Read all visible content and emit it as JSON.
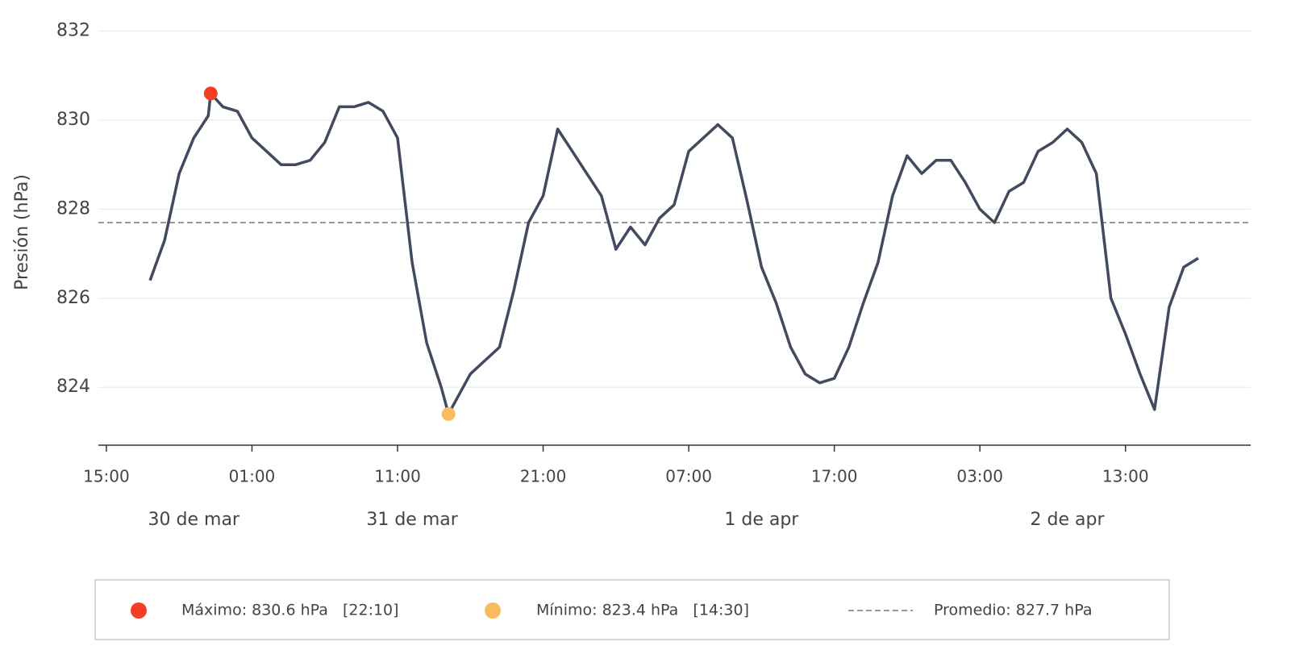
{
  "chart_data": {
    "type": "line",
    "ylabel": "Presión (hPa)",
    "color": "#414a5e",
    "x": [
      "03-30 18:00",
      "03-30 19:00",
      "03-30 20:00",
      "03-30 21:00",
      "03-30 22:00",
      "03-30 22:10",
      "03-30 23:00",
      "03-31 00:00",
      "03-31 01:00",
      "03-31 02:00",
      "03-31 03:00",
      "03-31 04:00",
      "03-31 05:00",
      "03-31 06:00",
      "03-31 07:00",
      "03-31 08:00",
      "03-31 09:00",
      "03-31 10:00",
      "03-31 11:00",
      "03-31 12:00",
      "03-31 13:00",
      "03-31 14:00",
      "03-31 14:30",
      "03-31 15:00",
      "03-31 16:00",
      "03-31 17:00",
      "03-31 18:00",
      "03-31 19:00",
      "03-31 20:00",
      "03-31 21:00",
      "03-31 22:00",
      "03-31 23:00",
      "04-01 00:00",
      "04-01 01:00",
      "04-01 02:00",
      "04-01 03:00",
      "04-01 04:00",
      "04-01 05:00",
      "04-01 06:00",
      "04-01 07:00",
      "04-01 08:00",
      "04-01 09:00",
      "04-01 10:00",
      "04-01 11:00",
      "04-01 12:00",
      "04-01 13:00",
      "04-01 14:00",
      "04-01 15:00",
      "04-01 16:00",
      "04-01 17:00",
      "04-01 18:00",
      "04-01 19:00",
      "04-01 20:00",
      "04-01 21:00",
      "04-01 22:00",
      "04-01 23:00",
      "04-02 00:00",
      "04-02 01:00",
      "04-02 02:00",
      "04-02 03:00",
      "04-02 04:00",
      "04-02 05:00",
      "04-02 06:00",
      "04-02 07:00",
      "04-02 08:00",
      "04-02 09:00",
      "04-02 10:00",
      "04-02 11:00",
      "04-02 12:00",
      "04-02 13:00",
      "04-02 14:00",
      "04-02 15:00",
      "04-02 16:00",
      "04-02 17:00",
      "04-02 18:00"
    ],
    "values": [
      826.4,
      827.3,
      828.8,
      829.6,
      830.1,
      830.6,
      830.3,
      830.2,
      829.6,
      829.3,
      829.0,
      829.0,
      829.1,
      829.5,
      830.3,
      830.3,
      830.4,
      830.2,
      829.6,
      826.8,
      825.0,
      824.0,
      823.4,
      823.7,
      824.3,
      824.6,
      824.9,
      826.2,
      827.7,
      828.3,
      829.8,
      829.3,
      828.8,
      828.3,
      827.1,
      827.6,
      827.2,
      827.8,
      828.1,
      829.3,
      829.6,
      829.9,
      829.6,
      828.2,
      826.7,
      825.9,
      824.9,
      824.3,
      824.1,
      824.2,
      824.9,
      825.9,
      826.8,
      828.3,
      829.2,
      828.8,
      829.1,
      829.1,
      828.6,
      828.0,
      827.7,
      828.4,
      828.6,
      829.3,
      829.5,
      829.8,
      829.5,
      828.8,
      826.0,
      825.2,
      824.3,
      823.5,
      825.8,
      826.7,
      826.9
    ],
    "xlim": [
      "03-30 14:27",
      "04-02 21:36"
    ],
    "xticks": [
      {
        "value": "03-30 15:00",
        "label": "15:00"
      },
      {
        "value": "03-31 01:00",
        "label": "01:00"
      },
      {
        "value": "03-31 11:00",
        "label": "11:00"
      },
      {
        "value": "03-31 21:00",
        "label": "21:00"
      },
      {
        "value": "04-01 07:00",
        "label": "07:00"
      },
      {
        "value": "04-01 17:00",
        "label": "17:00"
      },
      {
        "value": "04-02 03:00",
        "label": "03:00"
      },
      {
        "value": "04-02 13:00",
        "label": "13:00"
      }
    ],
    "date_ticks": [
      {
        "value": "03-30 21:00",
        "label": "30 de mar"
      },
      {
        "value": "03-31 12:00",
        "label": "31 de mar"
      },
      {
        "value": "04-01 12:00",
        "label": "1 de apr"
      },
      {
        "value": "04-02 09:00",
        "label": "2 de apr"
      }
    ],
    "ylim": [
      822.7,
      832.3
    ],
    "yticks": [
      824,
      826,
      828,
      830,
      832
    ],
    "grid": true,
    "max": {
      "x": "03-30 22:10",
      "value": 830.6,
      "color": "#f63d25",
      "label": "Máximo: 830.6 hPa   [22:10]"
    },
    "min": {
      "x": "03-31 14:30",
      "value": 823.4,
      "color": "#f8bb5d",
      "label": "Mínimo: 823.4 hPa   [14:30]"
    },
    "mean": {
      "value": 827.7,
      "color": "#999999",
      "label": "Promedio: 827.7 hPa"
    }
  }
}
